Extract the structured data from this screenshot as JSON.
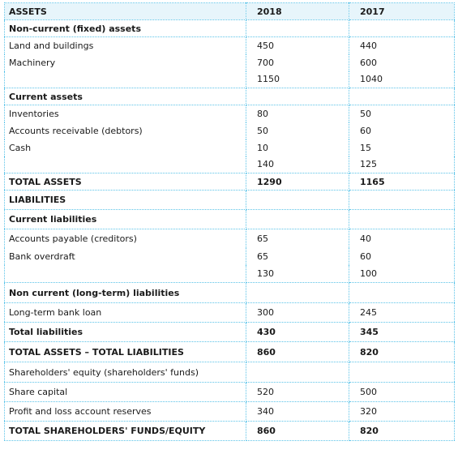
{
  "columns": {
    "label": "ASSETS",
    "year1": "2018",
    "year2": "2017"
  },
  "rows": [
    {
      "label": "Non-current (fixed) assets",
      "v1": "",
      "v2": "",
      "bold": true
    },
    {
      "label": "Land and buildings",
      "v1": "450",
      "v2": "440"
    },
    {
      "label": "Machinery",
      "v1": "700",
      "v2": "600"
    },
    {
      "label": "",
      "v1": "1150",
      "v2": "1040"
    },
    {
      "label": "Current assets",
      "v1": "",
      "v2": "",
      "bold": true
    },
    {
      "label": "Inventories",
      "v1": "80",
      "v2": "50"
    },
    {
      "label": "Accounts receivable (debtors)",
      "v1": "50",
      "v2": "60"
    },
    {
      "label": "Cash",
      "v1": "10",
      "v2": "15"
    },
    {
      "label": "",
      "v1": "140",
      "v2": "125"
    },
    {
      "label": "TOTAL ASSETS",
      "v1": "1290",
      "v2": "1165",
      "bold": true
    },
    {
      "label": "LIABILITIES",
      "v1": "",
      "v2": "",
      "bold": true
    },
    {
      "label": "Current liabilities",
      "v1": "",
      "v2": "",
      "bold": true
    },
    {
      "label": "Accounts payable (creditors)",
      "v1": "65",
      "v2": "40"
    },
    {
      "label": "Bank overdraft",
      "v1": "65",
      "v2": "60"
    },
    {
      "label": "",
      "v1": "130",
      "v2": "100"
    },
    {
      "label": "Non current (long-term) liabilities",
      "v1": "",
      "v2": "",
      "bold": true
    },
    {
      "label": "Long-term bank loan",
      "v1": "300",
      "v2": "245"
    },
    {
      "label": "Total liabilities",
      "v1": "430",
      "v2": "345",
      "bold": true
    },
    {
      "label": "TOTAL ASSETS – TOTAL LIABILITIES",
      "v1": "860",
      "v2": "820",
      "bold": true
    },
    {
      "label": "Shareholders' equity (shareholders' funds)",
      "v1": "",
      "v2": ""
    },
    {
      "label": "Share capital",
      "v1": "520",
      "v2": "500"
    },
    {
      "label": "Profit and loss account reserves",
      "v1": "340",
      "v2": "320"
    },
    {
      "label": "TOTAL SHAREHOLDERS' FUNDS/EQUITY",
      "v1": "860",
      "v2": "820",
      "bold": true
    }
  ],
  "colors": {
    "rule": "#5bc3e8",
    "header_fill": "#e7f5fb",
    "text": "#1a1a1a"
  }
}
